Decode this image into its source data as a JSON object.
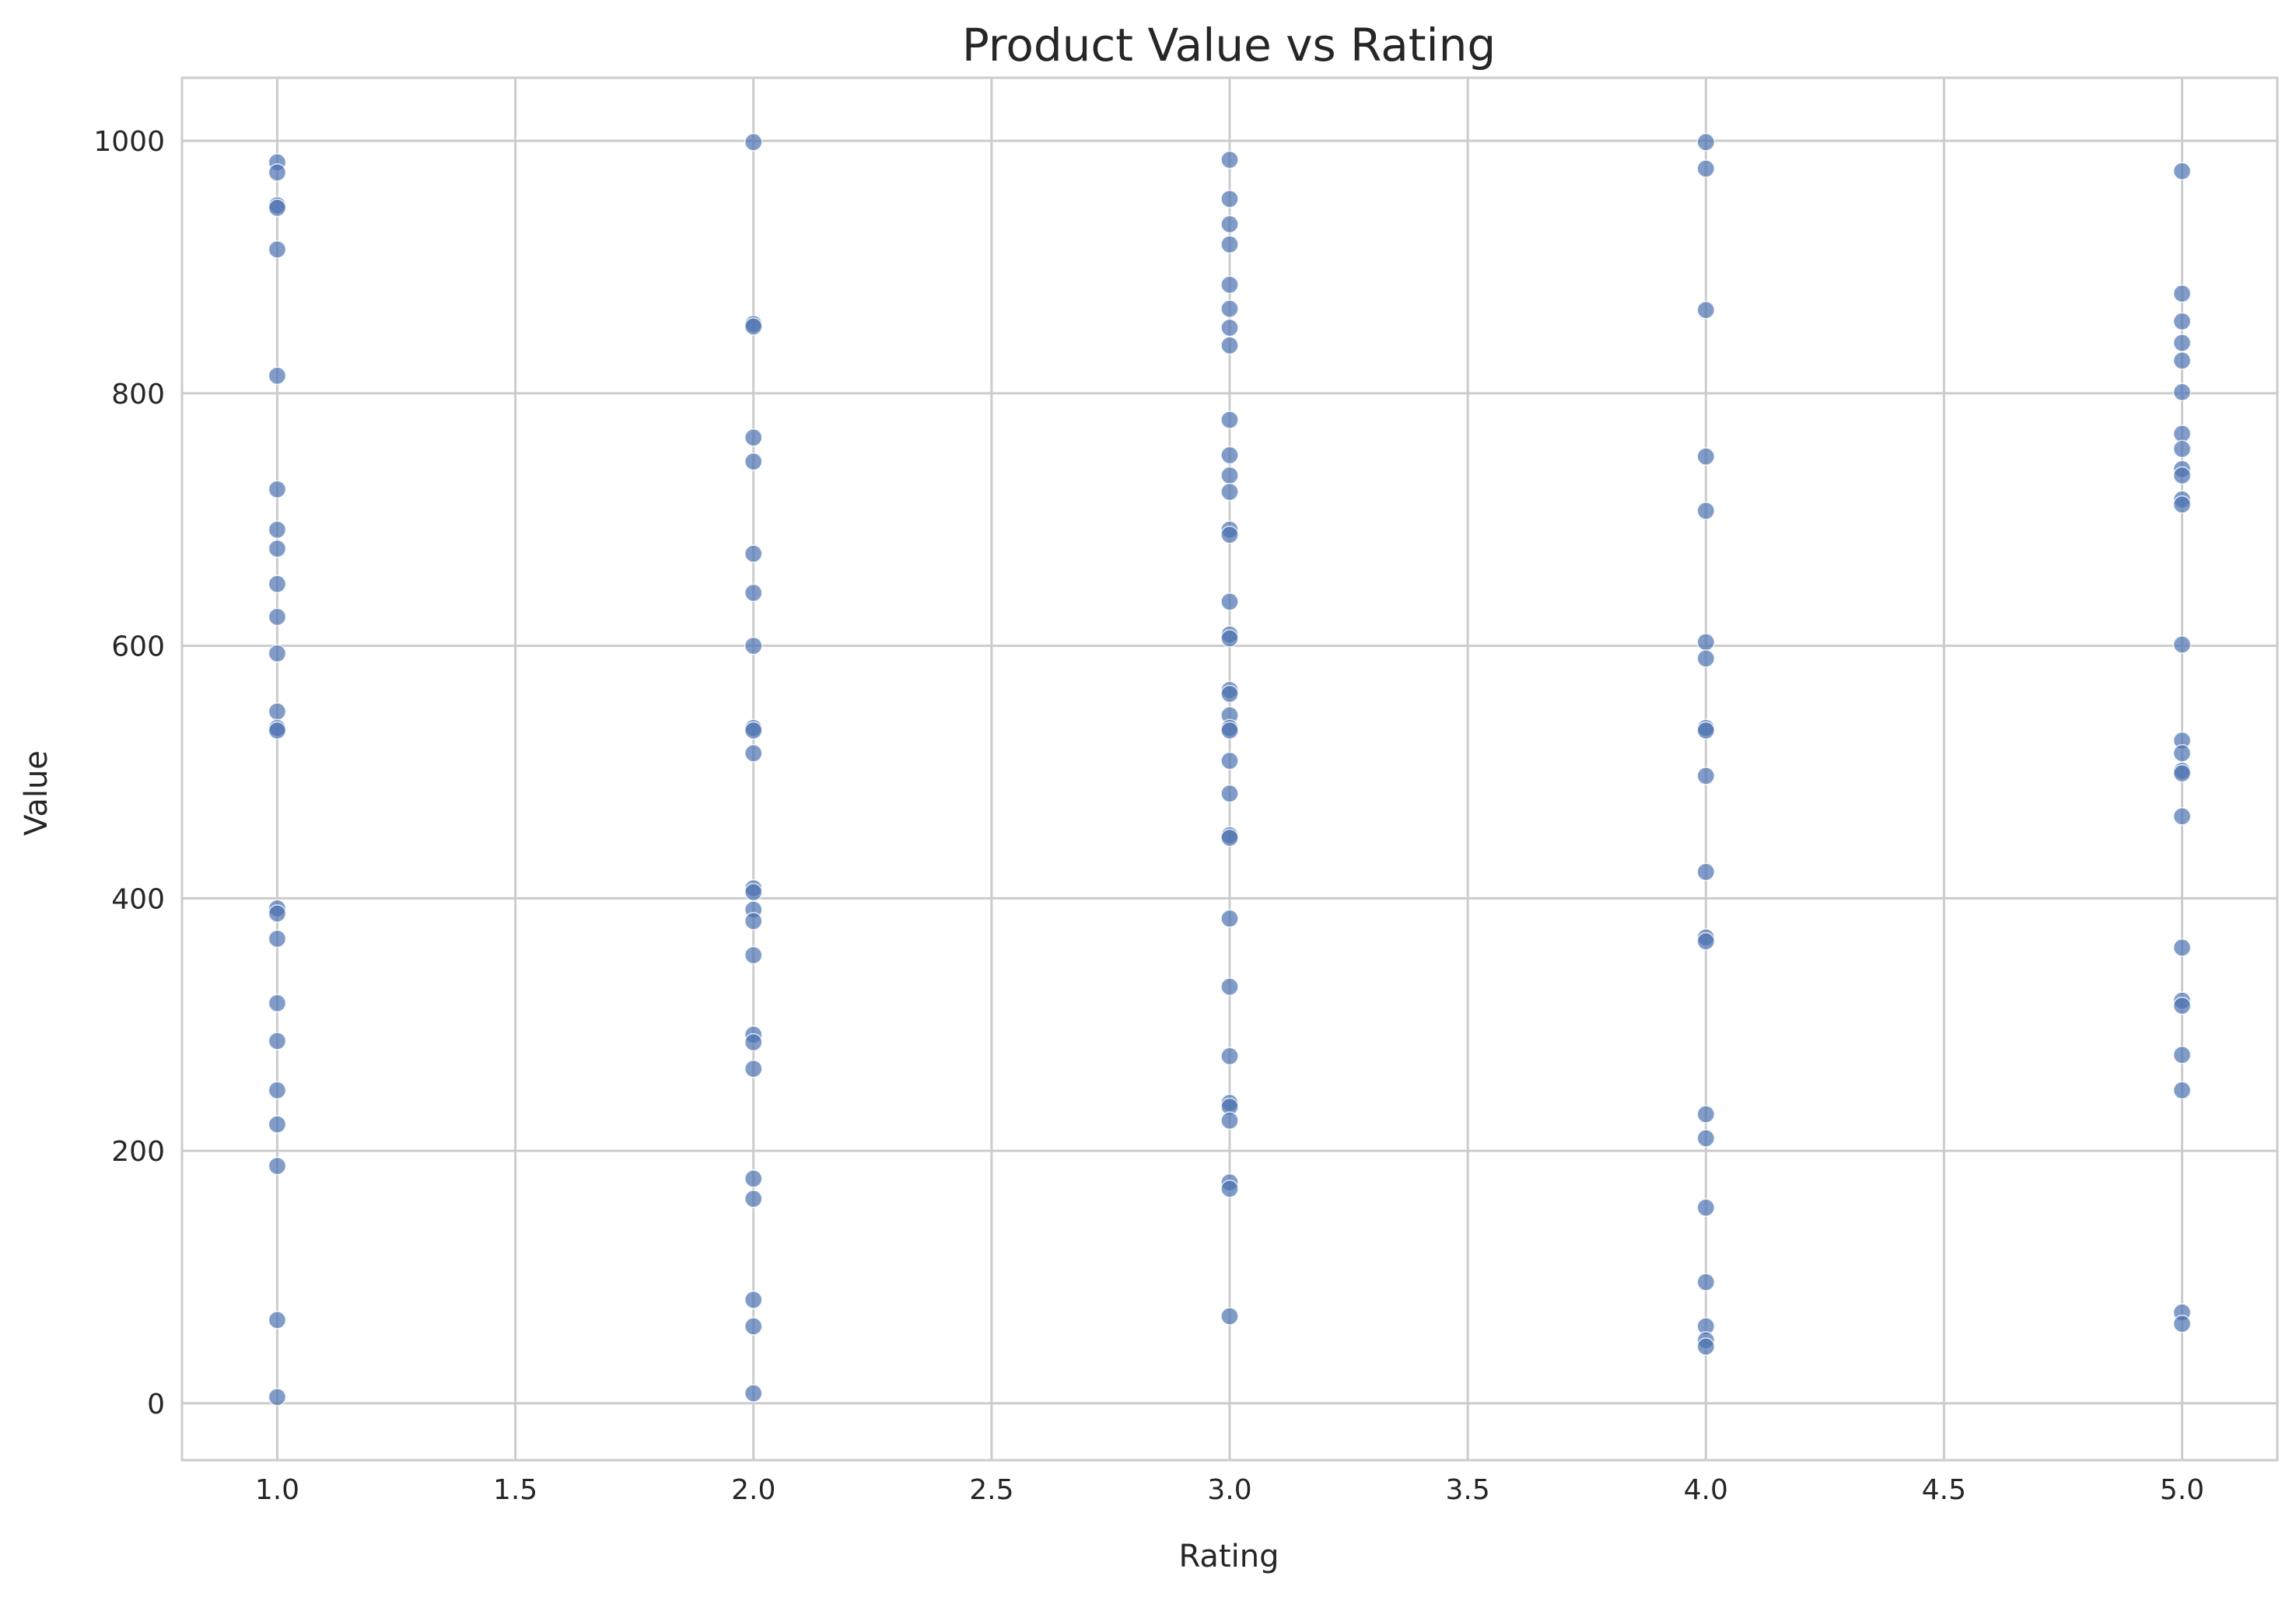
{
  "chart_data": {
    "type": "scatter",
    "title": "Product Value vs Rating",
    "xlabel": "Rating",
    "ylabel": "Value",
    "xlim": [
      0.8,
      5.2
    ],
    "ylim": [
      -45,
      1050
    ],
    "xticks": [
      1.0,
      1.5,
      2.0,
      2.5,
      3.0,
      3.5,
      4.0,
      4.5,
      5.0
    ],
    "xtick_labels": [
      "1.0",
      "1.5",
      "2.0",
      "2.5",
      "3.0",
      "3.5",
      "4.0",
      "4.5",
      "5.0"
    ],
    "yticks": [
      0,
      200,
      400,
      600,
      800,
      1000
    ],
    "ytick_labels": [
      "0",
      "200",
      "400",
      "600",
      "800",
      "1000"
    ],
    "grid": true,
    "marker_color": "#4c72b0",
    "marker_opacity": 0.7,
    "points": [
      {
        "x": 1,
        "y": 983
      },
      {
        "x": 1,
        "y": 975
      },
      {
        "x": 1,
        "y": 949
      },
      {
        "x": 1,
        "y": 947
      },
      {
        "x": 1,
        "y": 914
      },
      {
        "x": 1,
        "y": 814
      },
      {
        "x": 1,
        "y": 724
      },
      {
        "x": 1,
        "y": 692
      },
      {
        "x": 1,
        "y": 677
      },
      {
        "x": 1,
        "y": 649
      },
      {
        "x": 1,
        "y": 623
      },
      {
        "x": 1,
        "y": 594
      },
      {
        "x": 1,
        "y": 548
      },
      {
        "x": 1,
        "y": 535
      },
      {
        "x": 1,
        "y": 533
      },
      {
        "x": 1,
        "y": 392
      },
      {
        "x": 1,
        "y": 388
      },
      {
        "x": 1,
        "y": 368
      },
      {
        "x": 1,
        "y": 317
      },
      {
        "x": 1,
        "y": 287
      },
      {
        "x": 1,
        "y": 248
      },
      {
        "x": 1,
        "y": 221
      },
      {
        "x": 1,
        "y": 188
      },
      {
        "x": 1,
        "y": 66
      },
      {
        "x": 1,
        "y": 5
      },
      {
        "x": 2,
        "y": 999
      },
      {
        "x": 2,
        "y": 855
      },
      {
        "x": 2,
        "y": 853
      },
      {
        "x": 2,
        "y": 765
      },
      {
        "x": 2,
        "y": 746
      },
      {
        "x": 2,
        "y": 673
      },
      {
        "x": 2,
        "y": 642
      },
      {
        "x": 2,
        "y": 600
      },
      {
        "x": 2,
        "y": 535
      },
      {
        "x": 2,
        "y": 533
      },
      {
        "x": 2,
        "y": 515
      },
      {
        "x": 2,
        "y": 408
      },
      {
        "x": 2,
        "y": 405
      },
      {
        "x": 2,
        "y": 391
      },
      {
        "x": 2,
        "y": 382
      },
      {
        "x": 2,
        "y": 355
      },
      {
        "x": 2,
        "y": 292
      },
      {
        "x": 2,
        "y": 286
      },
      {
        "x": 2,
        "y": 265
      },
      {
        "x": 2,
        "y": 178
      },
      {
        "x": 2,
        "y": 162
      },
      {
        "x": 2,
        "y": 82
      },
      {
        "x": 2,
        "y": 61
      },
      {
        "x": 2,
        "y": 8
      },
      {
        "x": 3,
        "y": 985
      },
      {
        "x": 3,
        "y": 954
      },
      {
        "x": 3,
        "y": 934
      },
      {
        "x": 3,
        "y": 918
      },
      {
        "x": 3,
        "y": 886
      },
      {
        "x": 3,
        "y": 867
      },
      {
        "x": 3,
        "y": 852
      },
      {
        "x": 3,
        "y": 838
      },
      {
        "x": 3,
        "y": 779
      },
      {
        "x": 3,
        "y": 751
      },
      {
        "x": 3,
        "y": 735
      },
      {
        "x": 3,
        "y": 722
      },
      {
        "x": 3,
        "y": 692
      },
      {
        "x": 3,
        "y": 688
      },
      {
        "x": 3,
        "y": 635
      },
      {
        "x": 3,
        "y": 609
      },
      {
        "x": 3,
        "y": 606
      },
      {
        "x": 3,
        "y": 565
      },
      {
        "x": 3,
        "y": 562
      },
      {
        "x": 3,
        "y": 545
      },
      {
        "x": 3,
        "y": 535
      },
      {
        "x": 3,
        "y": 533
      },
      {
        "x": 3,
        "y": 509
      },
      {
        "x": 3,
        "y": 483
      },
      {
        "x": 3,
        "y": 450
      },
      {
        "x": 3,
        "y": 448
      },
      {
        "x": 3,
        "y": 384
      },
      {
        "x": 3,
        "y": 330
      },
      {
        "x": 3,
        "y": 275
      },
      {
        "x": 3,
        "y": 238
      },
      {
        "x": 3,
        "y": 235
      },
      {
        "x": 3,
        "y": 224
      },
      {
        "x": 3,
        "y": 175
      },
      {
        "x": 3,
        "y": 170
      },
      {
        "x": 3,
        "y": 69
      },
      {
        "x": 4,
        "y": 999
      },
      {
        "x": 4,
        "y": 978
      },
      {
        "x": 4,
        "y": 866
      },
      {
        "x": 4,
        "y": 750
      },
      {
        "x": 4,
        "y": 707
      },
      {
        "x": 4,
        "y": 603
      },
      {
        "x": 4,
        "y": 590
      },
      {
        "x": 4,
        "y": 535
      },
      {
        "x": 4,
        "y": 533
      },
      {
        "x": 4,
        "y": 497
      },
      {
        "x": 4,
        "y": 421
      },
      {
        "x": 4,
        "y": 369
      },
      {
        "x": 4,
        "y": 366
      },
      {
        "x": 4,
        "y": 229
      },
      {
        "x": 4,
        "y": 210
      },
      {
        "x": 4,
        "y": 155
      },
      {
        "x": 4,
        "y": 96
      },
      {
        "x": 4,
        "y": 61
      },
      {
        "x": 4,
        "y": 50
      },
      {
        "x": 4,
        "y": 45
      },
      {
        "x": 5,
        "y": 976
      },
      {
        "x": 5,
        "y": 879
      },
      {
        "x": 5,
        "y": 857
      },
      {
        "x": 5,
        "y": 840
      },
      {
        "x": 5,
        "y": 826
      },
      {
        "x": 5,
        "y": 801
      },
      {
        "x": 5,
        "y": 768
      },
      {
        "x": 5,
        "y": 756
      },
      {
        "x": 5,
        "y": 740
      },
      {
        "x": 5,
        "y": 735
      },
      {
        "x": 5,
        "y": 716
      },
      {
        "x": 5,
        "y": 712
      },
      {
        "x": 5,
        "y": 601
      },
      {
        "x": 5,
        "y": 525
      },
      {
        "x": 5,
        "y": 515
      },
      {
        "x": 5,
        "y": 501
      },
      {
        "x": 5,
        "y": 499
      },
      {
        "x": 5,
        "y": 465
      },
      {
        "x": 5,
        "y": 361
      },
      {
        "x": 5,
        "y": 319
      },
      {
        "x": 5,
        "y": 315
      },
      {
        "x": 5,
        "y": 276
      },
      {
        "x": 5,
        "y": 248
      },
      {
        "x": 5,
        "y": 72
      },
      {
        "x": 5,
        "y": 63
      }
    ]
  }
}
